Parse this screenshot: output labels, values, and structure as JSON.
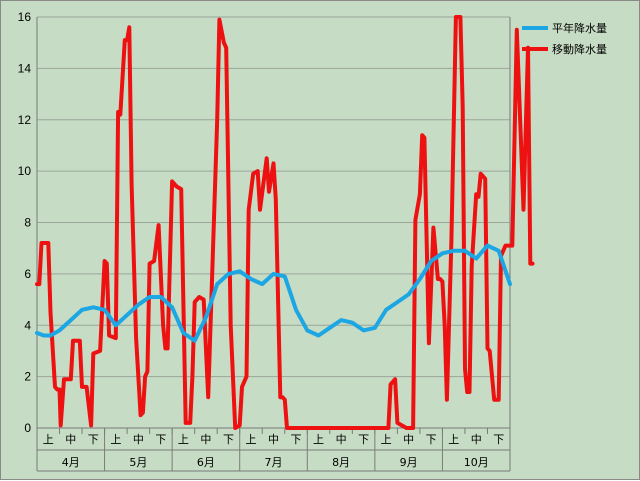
{
  "chart_data": {
    "type": "line",
    "title": "",
    "xlabel": "",
    "ylabel": "",
    "ylim": [
      0,
      16
    ],
    "yticks": [
      0,
      2,
      4,
      6,
      8,
      10,
      12,
      14,
      16
    ],
    "grid": "horizontal",
    "legend_position": "top-right",
    "months": [
      "4月",
      "5月",
      "6月",
      "7月",
      "8月",
      "9月",
      "10月"
    ],
    "periods": [
      "上",
      "中",
      "下"
    ],
    "series": [
      {
        "name": "平年降水量",
        "color": "#1ca6e4",
        "x": [
          0,
          0.3,
          0.6,
          1,
          1.5,
          2,
          2.5,
          3,
          3.5,
          4,
          4.5,
          5,
          5.5,
          6,
          6.5,
          7,
          7.5,
          8,
          8.5,
          9,
          9.5,
          10,
          10.5,
          11,
          11.5,
          12,
          12.5,
          13,
          13.5,
          14,
          14.5,
          15,
          15.5,
          16,
          16.5,
          17,
          17.5,
          18,
          18.5,
          19,
          19.5,
          20,
          20.5,
          21
        ],
        "values": [
          3.7,
          3.6,
          3.6,
          3.8,
          4.2,
          4.6,
          4.7,
          4.6,
          4.0,
          4.4,
          4.8,
          5.1,
          5.1,
          4.7,
          3.7,
          3.4,
          4.3,
          5.6,
          6.0,
          6.1,
          5.8,
          5.6,
          6.0,
          5.9,
          4.6,
          3.8,
          3.6,
          3.9,
          4.2,
          4.1,
          3.8,
          3.9,
          4.6,
          4.9,
          5.2,
          5.8,
          6.5,
          6.8,
          6.9,
          6.9,
          6.6,
          7.1,
          6.9,
          5.6
        ]
      },
      {
        "name": "移動降水量",
        "color": "#ee1111",
        "x": [
          0,
          0.1,
          0.2,
          0.5,
          0.6,
          0.8,
          0.9,
          1.0,
          1.05,
          1.2,
          1.5,
          1.6,
          1.9,
          2.0,
          2.2,
          2.4,
          2.5,
          2.8,
          3.0,
          3.1,
          3.2,
          3.5,
          3.6,
          3.7,
          3.9,
          4.0,
          4.1,
          4.2,
          4.4,
          4.6,
          4.7,
          4.8,
          4.9,
          5.0,
          5.2,
          5.4,
          5.6,
          5.7,
          5.8,
          6.0,
          6.2,
          6.4,
          6.6,
          6.8,
          6.9,
          7.0,
          7.2,
          7.4,
          7.6,
          8.0,
          8.1,
          8.3,
          8.4,
          8.6,
          8.8,
          9.0,
          9.1,
          9.2,
          9.3,
          9.4,
          9.6,
          9.8,
          9.9,
          10.2,
          10.3,
          10.5,
          10.6,
          10.8,
          10.9,
          11.0,
          11.1,
          11.3,
          11.4,
          11.5,
          12.0,
          12.3,
          13.5,
          13.7,
          14.0,
          14.1,
          14.4,
          14.5,
          14.8,
          15.4,
          15.6,
          15.7,
          15.8,
          15.9,
          16.0,
          16.2,
          16.4,
          16.6,
          16.7,
          16.8,
          17.0,
          17.1,
          17.2,
          17.4,
          17.6,
          17.8,
          17.9,
          18.0,
          18.1,
          18.2,
          18.4,
          18.6,
          18.7,
          18.8,
          18.9,
          19.0,
          19.1,
          19.2,
          19.3,
          19.5,
          19.6,
          19.7,
          19.9,
          20.0,
          20.1,
          20.3,
          20.5,
          20.6,
          20.8,
          21.0,
          21.1,
          21.3,
          21.6,
          21.8,
          21.9,
          22.0
        ],
        "values": [
          5.6,
          5.6,
          7.2,
          7.2,
          4.5,
          1.6,
          1.5,
          1.5,
          0.1,
          1.9,
          1.9,
          3.4,
          3.4,
          1.6,
          1.6,
          0.1,
          2.9,
          3.0,
          6.5,
          6.4,
          3.6,
          3.5,
          12.3,
          12.2,
          15.1,
          15.1,
          15.6,
          9.5,
          3.5,
          0.5,
          0.6,
          2.0,
          2.2,
          6.4,
          6.5,
          7.9,
          4.0,
          3.1,
          3.1,
          9.6,
          9.4,
          9.3,
          0.2,
          0.2,
          2.0,
          4.9,
          5.1,
          5.0,
          1.2,
          12.0,
          15.9,
          15.0,
          14.8,
          4.0,
          0.0,
          0.1,
          1.6,
          1.8,
          2.0,
          8.5,
          9.9,
          10.0,
          8.5,
          10.5,
          9.2,
          10.3,
          8.9,
          1.2,
          1.2,
          1.1,
          0.0,
          0.0,
          0.0,
          0.0,
          0.0,
          0.0,
          0.0,
          0.0,
          0.0,
          0.0,
          0.0,
          0.0,
          0.0,
          0.0,
          0.0,
          1.7,
          1.8,
          1.9,
          0.2,
          0.1,
          0.0,
          0.0,
          0.0,
          8.1,
          9.1,
          11.4,
          11.3,
          3.3,
          7.8,
          5.8,
          5.8,
          5.7,
          4.0,
          1.1,
          7.3,
          16.0,
          16.0,
          16.0,
          12.5,
          2.3,
          1.4,
          1.4,
          6.3,
          9.1,
          9.0,
          9.9,
          9.7,
          3.1,
          3.0,
          1.1,
          1.1,
          6.7,
          7.1,
          7.1,
          7.1,
          15.5,
          8.5,
          14.8,
          6.4,
          6.4
        ]
      }
    ]
  }
}
